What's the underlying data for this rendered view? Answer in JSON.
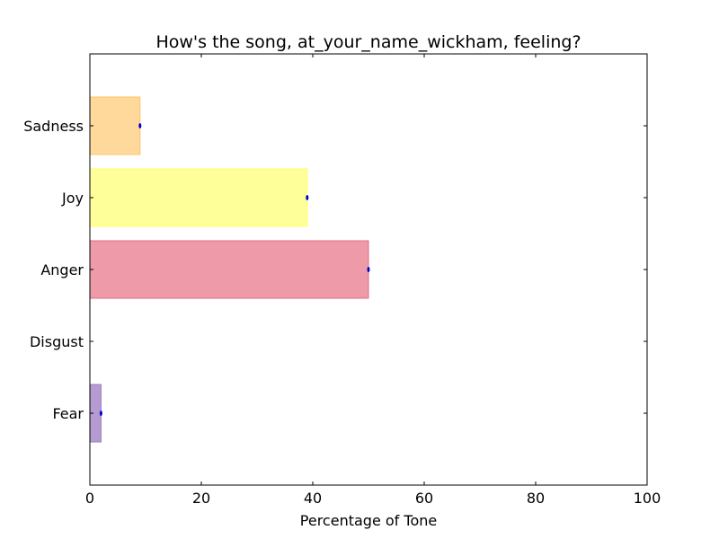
{
  "chart_data": {
    "type": "bar",
    "orientation": "horizontal",
    "title": "How's the song, at_your_name_wickham, feeling?",
    "xlabel": "Percentage of Tone",
    "ylabel": "",
    "xlim": [
      0,
      100
    ],
    "xticks": [
      "0",
      "20",
      "40",
      "60",
      "80",
      "100"
    ],
    "categories": [
      "Fear",
      "Disgust",
      "Anger",
      "Joy",
      "Sadness"
    ],
    "values": [
      2,
      0,
      50,
      39,
      9
    ],
    "colors": [
      "#b59bd1",
      "#7fbf7f",
      "#ee9aa8",
      "#ffff99",
      "#fed99b"
    ],
    "edge_colors": [
      "#9c7cc0",
      "#5fa85f",
      "#e06f84",
      "#ffff66",
      "#fdc36a"
    ],
    "marker_color": "#0000cc",
    "grid": false,
    "legend": "none"
  }
}
